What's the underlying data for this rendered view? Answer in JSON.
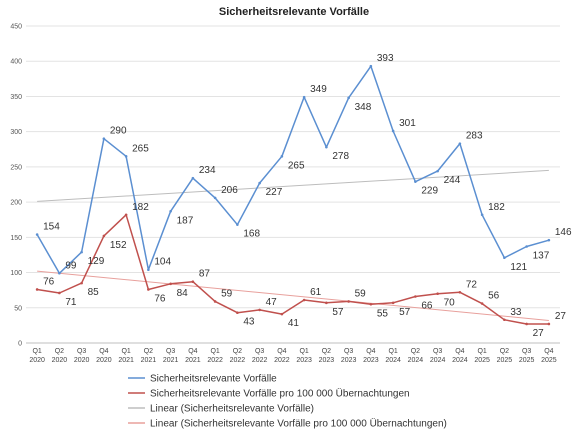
{
  "chart_data": {
    "type": "line",
    "title": "Sicherheitsrelevante Vorfälle",
    "categories": [
      [
        "Q1",
        "2020"
      ],
      [
        "Q2",
        "2020"
      ],
      [
        "Q3",
        "2020"
      ],
      [
        "Q4",
        "2020"
      ],
      [
        "Q1",
        "2021"
      ],
      [
        "Q2",
        "2021"
      ],
      [
        "Q3",
        "2021"
      ],
      [
        "Q4",
        "2021"
      ],
      [
        "Q1",
        "2022"
      ],
      [
        "Q2",
        "2022"
      ],
      [
        "Q3",
        "2022"
      ],
      [
        "Q4",
        "2022"
      ],
      [
        "Q1",
        "2023"
      ],
      [
        "Q2",
        "2023"
      ],
      [
        "Q3",
        "2023"
      ],
      [
        "Q4",
        "2023"
      ],
      [
        "Q1",
        "2024"
      ],
      [
        "Q2",
        "2024"
      ],
      [
        "Q3",
        "2024"
      ],
      [
        "Q4",
        "2024"
      ],
      [
        "Q1",
        "2025"
      ],
      [
        "Q2",
        "2025"
      ],
      [
        "Q3",
        "2025"
      ],
      [
        "Q4",
        "2025"
      ]
    ],
    "ylim": [
      0,
      450
    ],
    "yticks": [
      0,
      50,
      100,
      150,
      200,
      250,
      300,
      350,
      400,
      450
    ],
    "grid": true,
    "legend_position": "bottom",
    "series": [
      {
        "name": "Sicherheitsrelevante Vorfälle",
        "color": "#5b8fd1",
        "values": [
          154,
          99,
          129,
          290,
          265,
          104,
          187,
          234,
          206,
          168,
          227,
          265,
          349,
          278,
          348,
          393,
          301,
          229,
          244,
          283,
          182,
          121,
          137,
          146
        ]
      },
      {
        "name": "Sicherheitsrelevante Vorfälle pro 100 000 Übernachtungen",
        "color": "#c0504d",
        "values": [
          76,
          71,
          85,
          152,
          182,
          76,
          84,
          87,
          59,
          43,
          47,
          41,
          61,
          57,
          59,
          55,
          57,
          66,
          70,
          72,
          56,
          33,
          27,
          27
        ]
      }
    ],
    "trendlines": [
      {
        "name": "Linear (Sicherheitsrelevante Vorfälle)",
        "color": "#bdbdbd",
        "from": 201,
        "to": 245
      },
      {
        "name": "Linear (Sicherheitsrelevante Vorfälle pro 100 000 Übernachtungen)",
        "color": "#e8a09c",
        "from": 102,
        "to": 32
      }
    ]
  }
}
